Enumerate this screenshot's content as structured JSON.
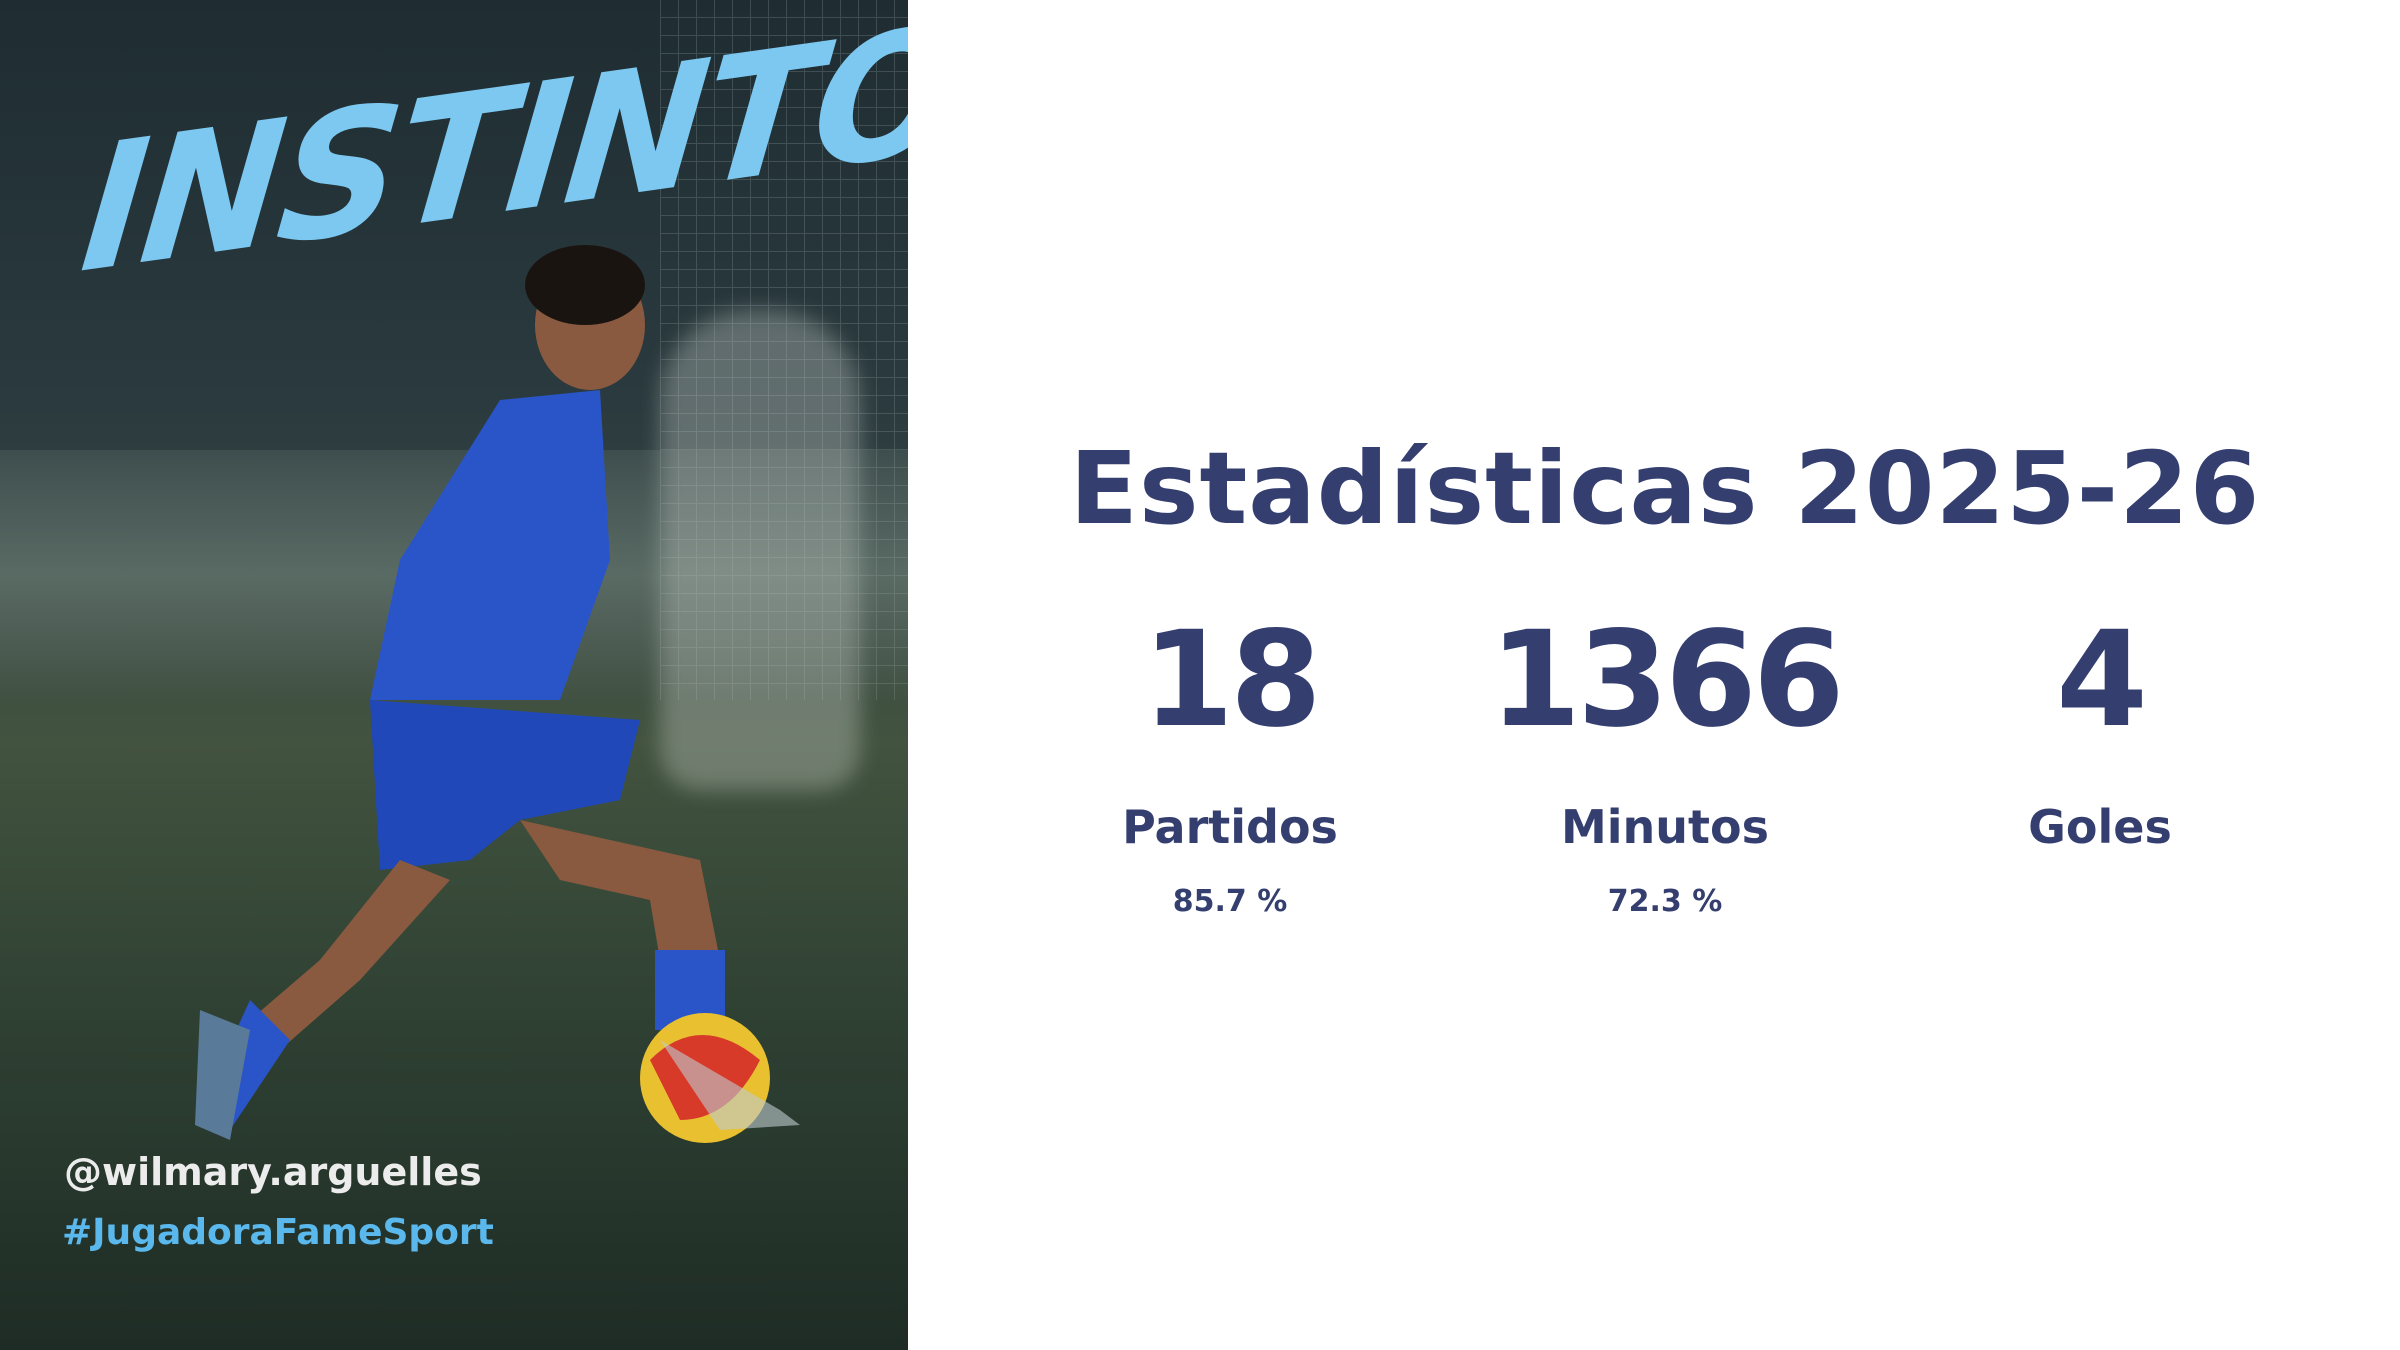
{
  "poster": {
    "headline": "INSTINTO",
    "handle": "@wilmary.arguelles",
    "hashtag": "#JugadoraFameSport",
    "headline_color": "#7cc8f0",
    "hashtag_color": "#5ab8ec"
  },
  "stats": {
    "title": "Estadísticas 2025-26",
    "accent_color": "#343f70",
    "items": [
      {
        "value": "18",
        "label": "Partidos",
        "percent": "85.7 %"
      },
      {
        "value": "1366",
        "label": "Minutos",
        "percent": "72.3 %"
      },
      {
        "value": "4",
        "label": "Goles",
        "percent": ""
      }
    ]
  }
}
